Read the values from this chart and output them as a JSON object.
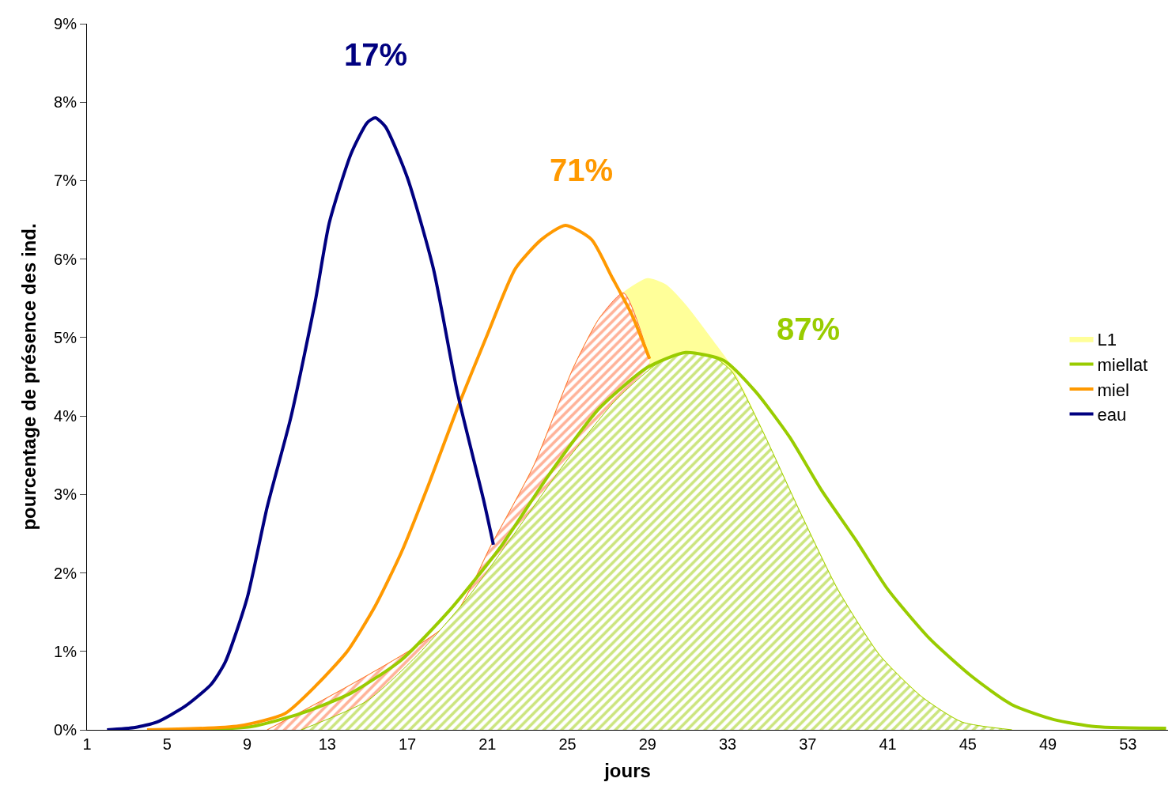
{
  "chart_data": {
    "type": "line",
    "xlabel": "jours",
    "ylabel": "pourcentage de présence des ind.",
    "xlim": [
      1,
      55
    ],
    "xticks": [
      1,
      5,
      9,
      13,
      17,
      21,
      25,
      29,
      33,
      37,
      41,
      45,
      49,
      53
    ],
    "ylim": [
      0,
      9
    ],
    "yticks": [
      {
        "value": 0,
        "label": "0%"
      },
      {
        "value": 1,
        "label": "1%"
      },
      {
        "value": 2,
        "label": "2%"
      },
      {
        "value": 3,
        "label": "3%"
      },
      {
        "value": 4,
        "label": "4%"
      },
      {
        "value": 5,
        "label": "5%"
      },
      {
        "value": 6,
        "label": "6%"
      },
      {
        "value": 7,
        "label": "7%"
      },
      {
        "value": 8,
        "label": "8%"
      },
      {
        "value": 9,
        "label": "9%"
      }
    ],
    "legend": "right",
    "line_style": "solid",
    "marker": "none",
    "series": [
      {
        "name": "L1",
        "type": "area",
        "color": "#ffff99",
        "x": [
          10,
          19.1,
          21.2,
          23.3,
          25.3,
          26.6,
          27.8,
          29,
          29.9,
          30.9,
          32.3,
          33.2,
          34.8,
          36.5,
          38.5,
          40.6,
          42.7,
          44.7,
          47.2
        ],
        "values": [
          0,
          1.37,
          2.36,
          3.36,
          4.62,
          5.25,
          5.57,
          5.75,
          5.67,
          5.41,
          4.94,
          4.62,
          3.78,
          2.84,
          1.79,
          0.95,
          0.42,
          0.1,
          0
        ]
      },
      {
        "type": "area",
        "color": "#ff6633",
        "x": [
          10,
          19.1,
          21.2,
          23.3,
          25.3,
          26.6,
          27.8,
          29.1
        ],
        "values": [
          0,
          1.37,
          2.36,
          3.36,
          4.62,
          5.25,
          5.57,
          4.73
        ]
      },
      {
        "type": "area",
        "color": "#99cc00",
        "x": [
          11.7,
          15,
          17.5,
          20,
          22.4,
          24.9,
          27.4,
          29.5,
          30.9,
          32.3,
          33.2,
          34.8,
          36.5,
          38.5,
          40.6,
          42.7,
          44.7,
          47.2
        ],
        "values": [
          0,
          0.37,
          0.95,
          1.68,
          2.52,
          3.41,
          4.2,
          4.67,
          4.81,
          4.75,
          4.57,
          3.78,
          2.84,
          1.79,
          0.95,
          0.42,
          0.1,
          0
        ]
      },
      {
        "name": "miellat",
        "color": "#99cc00",
        "x": [
          6,
          9.2,
          11.7,
          14.2,
          16.7,
          19.1,
          21.6,
          24.1,
          26.6,
          29,
          30.9,
          32.8,
          34.4,
          36.1,
          37.7,
          39.4,
          41,
          43.1,
          45.2,
          47.2,
          49.3,
          51.4,
          54.9
        ],
        "values": [
          0,
          0.04,
          0.21,
          0.47,
          0.89,
          1.52,
          2.31,
          3.26,
          4.1,
          4.62,
          4.81,
          4.71,
          4.31,
          3.73,
          3.05,
          2.42,
          1.79,
          1.16,
          0.68,
          0.32,
          0.13,
          0.04,
          0.02
        ]
      },
      {
        "name": "miel",
        "color": "#ff9900",
        "x": [
          4,
          8.6,
          10.9,
          12.5,
          14,
          15.4,
          16.7,
          18.1,
          19.5,
          21,
          22.4,
          23.7,
          24.9,
          26.2,
          27.2,
          28.2,
          29.1
        ],
        "values": [
          0,
          0.05,
          0.21,
          0.58,
          1.0,
          1.58,
          2.26,
          3.15,
          4.1,
          5.04,
          5.88,
          6.25,
          6.43,
          6.25,
          5.78,
          5.3,
          4.73
        ]
      },
      {
        "name": "eau",
        "color": "#000080",
        "x": [
          2,
          3.4,
          4.5,
          5.9,
          7.2,
          7.9,
          9,
          10,
          11.2,
          12.4,
          13.1,
          14.2,
          15,
          15.4,
          15.9,
          17,
          18.3,
          19.5,
          20.8,
          21.3
        ],
        "values": [
          0,
          0.03,
          0.1,
          0.3,
          0.58,
          0.86,
          1.68,
          2.84,
          4.0,
          5.46,
          6.46,
          7.35,
          7.74,
          7.8,
          7.69,
          7.04,
          5.88,
          4.3,
          2.94,
          2.36
        ]
      }
    ],
    "annotations": [
      "17%",
      "71%",
      "87%"
    ]
  }
}
